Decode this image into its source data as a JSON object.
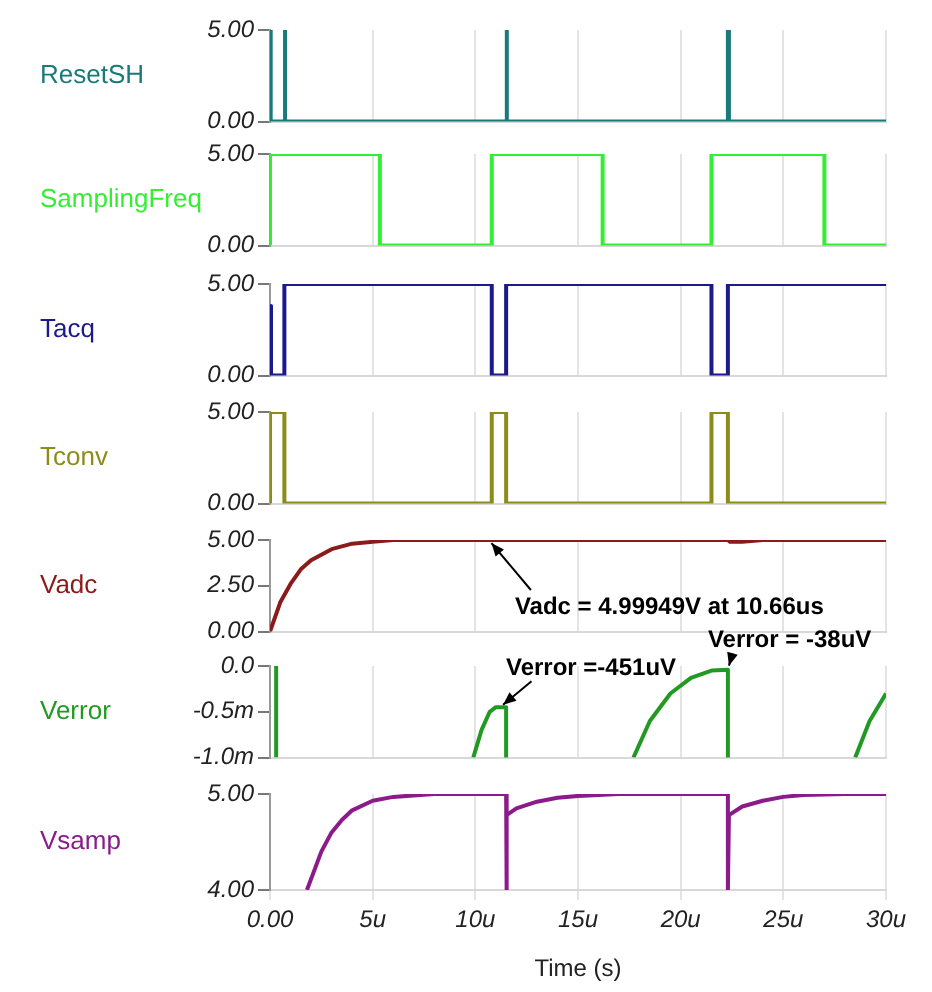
{
  "chart_data": [
    {
      "type": "line",
      "x": [
        0,
        0,
        0.05,
        0.05,
        0.7,
        0.7,
        0.75,
        0.75,
        11.5,
        11.5,
        11.55,
        11.55,
        22.3,
        22.3,
        22.35,
        22.35,
        30
      ],
      "series": [
        {
          "name": "ResetSH",
          "color": "#1a7a7a",
          "values": [
            0,
            5,
            5,
            0,
            0,
            5,
            5,
            0,
            0,
            5,
            5,
            0,
            0,
            5,
            5,
            0,
            0
          ]
        }
      ],
      "xlim": [
        0,
        30
      ],
      "xticks": [
        {
          "value": 0,
          "label": null
        },
        {
          "value": 5,
          "label": null
        },
        {
          "value": 10,
          "label": null
        },
        {
          "value": 15,
          "label": null
        },
        {
          "value": 20,
          "label": null
        },
        {
          "value": 25,
          "label": null
        },
        {
          "value": 30,
          "label": null
        }
      ],
      "ylim": [
        0,
        5
      ],
      "yticks": [
        {
          "value": 0,
          "label": "0.00"
        },
        {
          "value": 5,
          "label": "5.00"
        }
      ],
      "grid": "x",
      "legend": false,
      "tick_labels": "y"
    },
    {
      "type": "line",
      "x": [
        0,
        0,
        5.35,
        5.35,
        10.8,
        10.8,
        16.2,
        16.2,
        21.5,
        21.5,
        27,
        27,
        30
      ],
      "series": [
        {
          "name": "SamplingFreq",
          "color": "#33ee33",
          "values": [
            0,
            5,
            5,
            0,
            0,
            5,
            5,
            0,
            0,
            5,
            5,
            0,
            0
          ]
        }
      ],
      "xlim": [
        0,
        30
      ],
      "xticks": [
        {
          "value": 0,
          "label": null
        },
        {
          "value": 5,
          "label": null
        },
        {
          "value": 10,
          "label": null
        },
        {
          "value": 15,
          "label": null
        },
        {
          "value": 20,
          "label": null
        },
        {
          "value": 25,
          "label": null
        },
        {
          "value": 30,
          "label": null
        }
      ],
      "ylim": [
        0,
        5
      ],
      "yticks": [
        {
          "value": 0,
          "label": "0.00"
        },
        {
          "value": 5,
          "label": "5.00"
        }
      ],
      "grid": "x",
      "legend": false,
      "tick_labels": "y"
    },
    {
      "type": "line",
      "x": [
        0,
        0.05,
        0.7,
        0.7,
        10.8,
        10.8,
        11.5,
        11.5,
        21.5,
        21.5,
        22.3,
        22.3,
        30
      ],
      "series": [
        {
          "name": "Tacq",
          "color": "#1a1a8c",
          "values": [
            3.8,
            0,
            0,
            5,
            5,
            0,
            0,
            5,
            5,
            0,
            0,
            5,
            5
          ]
        }
      ],
      "xlim": [
        0,
        30
      ],
      "xticks": [
        {
          "value": 0,
          "label": null
        },
        {
          "value": 5,
          "label": null
        },
        {
          "value": 10,
          "label": null
        },
        {
          "value": 15,
          "label": null
        },
        {
          "value": 20,
          "label": null
        },
        {
          "value": 25,
          "label": null
        },
        {
          "value": 30,
          "label": null
        }
      ],
      "ylim": [
        0,
        5
      ],
      "yticks": [
        {
          "value": 0,
          "label": "0.00"
        },
        {
          "value": 5,
          "label": "5.00"
        }
      ],
      "grid": "x",
      "legend": false,
      "tick_labels": "y"
    },
    {
      "type": "line",
      "x": [
        0,
        0,
        0.7,
        0.7,
        10.8,
        10.8,
        11.5,
        11.5,
        21.5,
        21.5,
        22.3,
        22.3,
        30
      ],
      "series": [
        {
          "name": "Tconv",
          "color": "#8c8c1a",
          "values": [
            0,
            5,
            5,
            0,
            0,
            5,
            5,
            0,
            0,
            5,
            5,
            0,
            0
          ]
        }
      ],
      "xlim": [
        0,
        30
      ],
      "xticks": [
        {
          "value": 0,
          "label": null
        },
        {
          "value": 5,
          "label": null
        },
        {
          "value": 10,
          "label": null
        },
        {
          "value": 15,
          "label": null
        },
        {
          "value": 20,
          "label": null
        },
        {
          "value": 25,
          "label": null
        },
        {
          "value": 30,
          "label": null
        }
      ],
      "ylim": [
        0,
        5
      ],
      "yticks": [
        {
          "value": 0,
          "label": "0.00"
        },
        {
          "value": 5,
          "label": "5.00"
        }
      ],
      "grid": "x",
      "legend": false,
      "tick_labels": "y"
    },
    {
      "type": "line",
      "x": [
        0,
        0.5,
        1,
        1.5,
        2,
        3,
        4,
        5,
        6,
        8,
        11.5,
        11.6,
        12,
        13,
        22.3,
        22.4,
        23,
        24,
        26,
        30
      ],
      "series": [
        {
          "name": "Vadc",
          "color": "#8b1a1a",
          "values": [
            0,
            1.6,
            2.6,
            3.4,
            3.9,
            4.5,
            4.8,
            4.9,
            5,
            5,
            5,
            5,
            5,
            5,
            5,
            4.9,
            4.9,
            5,
            5,
            5
          ]
        }
      ],
      "xlim": [
        0,
        30
      ],
      "xticks": [
        {
          "value": 0,
          "label": null
        },
        {
          "value": 5,
          "label": null
        },
        {
          "value": 10,
          "label": null
        },
        {
          "value": 15,
          "label": null
        },
        {
          "value": 20,
          "label": null
        },
        {
          "value": 25,
          "label": null
        },
        {
          "value": 30,
          "label": null
        }
      ],
      "ylim": [
        0,
        5
      ],
      "yticks": [
        {
          "value": 0,
          "label": "0.00"
        },
        {
          "value": 2.5,
          "label": "2.50"
        },
        {
          "value": 5,
          "label": "5.00"
        }
      ],
      "grid": "x",
      "legend": false,
      "tick_labels": "y",
      "annotations": [
        {
          "text": "Vadc = 4.99949V at 10.66us",
          "x": 10.66,
          "y": 4.99949
        }
      ]
    },
    {
      "type": "line",
      "x": [
        0.3,
        0.3,
        5,
        9.9,
        10.3,
        10.7,
        11,
        11.5,
        11.5,
        15,
        17.7,
        18.5,
        19.5,
        20.5,
        21.5,
        22.3,
        22.3,
        25,
        28.5,
        29.2,
        30
      ],
      "series": [
        {
          "name": "Verror",
          "color": "#229922",
          "values": [
            -1,
            0,
            null,
            -1,
            -0.7,
            -0.5,
            -0.45,
            -0.45,
            -1,
            null,
            -1,
            -0.6,
            -0.3,
            -0.13,
            -0.05,
            -0.04,
            -1,
            null,
            -1,
            -0.6,
            -0.3
          ]
        }
      ],
      "xlim": [
        0,
        30
      ],
      "xticks": [
        {
          "value": 0,
          "label": null
        },
        {
          "value": 5,
          "label": null
        },
        {
          "value": 10,
          "label": null
        },
        {
          "value": 15,
          "label": null
        },
        {
          "value": 20,
          "label": null
        },
        {
          "value": 25,
          "label": null
        },
        {
          "value": 30,
          "label": null
        }
      ],
      "ylim": [
        -1,
        0
      ],
      "yticks": [
        {
          "value": -1,
          "label": "-1.0m"
        },
        {
          "value": -0.5,
          "label": "-0.5m"
        },
        {
          "value": 0,
          "label": "0.0"
        }
      ],
      "grid": "x",
      "legend": false,
      "tick_labels": "y",
      "annotations": [
        {
          "text": "Verror =-451uV",
          "x": 11.2,
          "y": -0.451
        },
        {
          "text": "Verror = -38uV",
          "x": 22.3,
          "y": -0.038
        }
      ]
    },
    {
      "type": "line",
      "x": [
        1.8,
        2.5,
        3,
        3.5,
        4,
        5,
        6,
        8,
        11.5,
        11.5,
        11.55,
        12,
        13,
        14,
        15,
        17,
        22.3,
        22.3,
        22.35,
        23,
        24,
        25,
        26,
        28,
        30
      ],
      "series": [
        {
          "name": "Vsamp",
          "color": "#8b1a8b",
          "values": [
            4,
            4.4,
            4.6,
            4.73,
            4.83,
            4.93,
            4.97,
            5,
            5,
            4,
            4.78,
            4.85,
            4.92,
            4.96,
            4.98,
            5,
            5,
            4,
            4.78,
            4.87,
            4.93,
            4.97,
            4.99,
            5,
            5
          ]
        }
      ],
      "xlim": [
        0,
        30
      ],
      "xticks": [
        {
          "value": 0,
          "label": "0.00"
        },
        {
          "value": 5,
          "label": "5u"
        },
        {
          "value": 10,
          "label": "10u"
        },
        {
          "value": 15,
          "label": "15u"
        },
        {
          "value": 20,
          "label": "20u"
        },
        {
          "value": 25,
          "label": "25u"
        },
        {
          "value": 30,
          "label": "30u"
        }
      ],
      "ylim": [
        4,
        5
      ],
      "yticks": [
        {
          "value": 4,
          "label": "4.00"
        },
        {
          "value": 5,
          "label": "5.00"
        }
      ],
      "grid": "x",
      "legend": false,
      "xlabel": "Time (s)"
    }
  ]
}
